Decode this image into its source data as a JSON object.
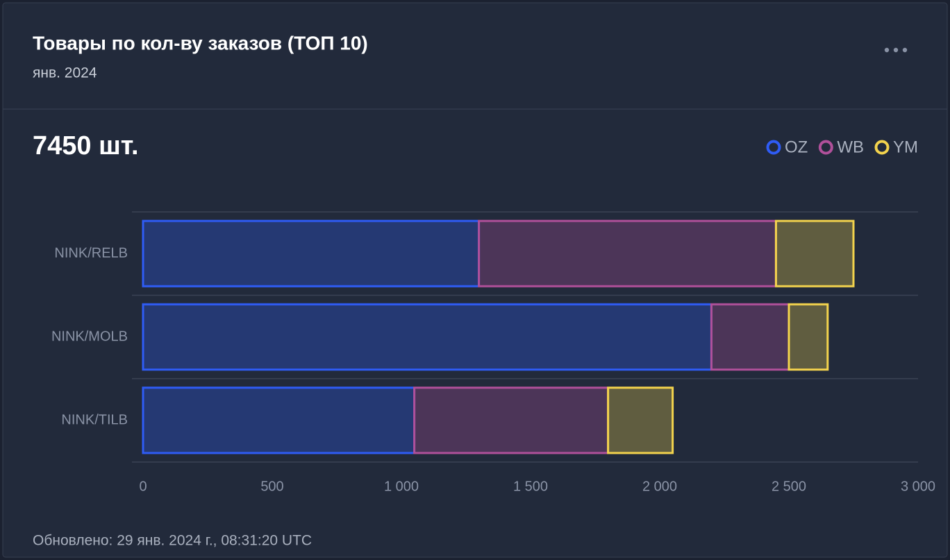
{
  "header": {
    "title": "Товары по кол-ву заказов (ТОП 10)",
    "subtitle": "янв. 2024"
  },
  "total": "7450 шт.",
  "footer": "Обновлено: 29 янв. 2024 г., 08:31:20 UTC",
  "chart_data": {
    "type": "stacked-bar-horizontal",
    "categories": [
      "NINK/RELB",
      "NINK/MOLB",
      "NINK/TILB"
    ],
    "series": [
      {
        "name": "OZ",
        "color": "#2f5cf5",
        "values": [
          1300,
          2200,
          1050
        ]
      },
      {
        "name": "WB",
        "color": "#b0509a",
        "values": [
          1150,
          300,
          750
        ]
      },
      {
        "name": "YM",
        "color": "#f3d34d",
        "values": [
          300,
          150,
          250
        ]
      }
    ],
    "xlim": [
      0,
      3000
    ],
    "xticks": [
      0,
      500,
      {
        "value": 1000,
        "label": "1 000"
      },
      {
        "value": 1500,
        "label": "1 500"
      },
      {
        "value": 2000,
        "label": "2 000"
      },
      {
        "value": 2500,
        "label": "2 500"
      },
      {
        "value": 3000,
        "label": "3 000"
      }
    ],
    "grid": true,
    "legend": "top-right"
  }
}
